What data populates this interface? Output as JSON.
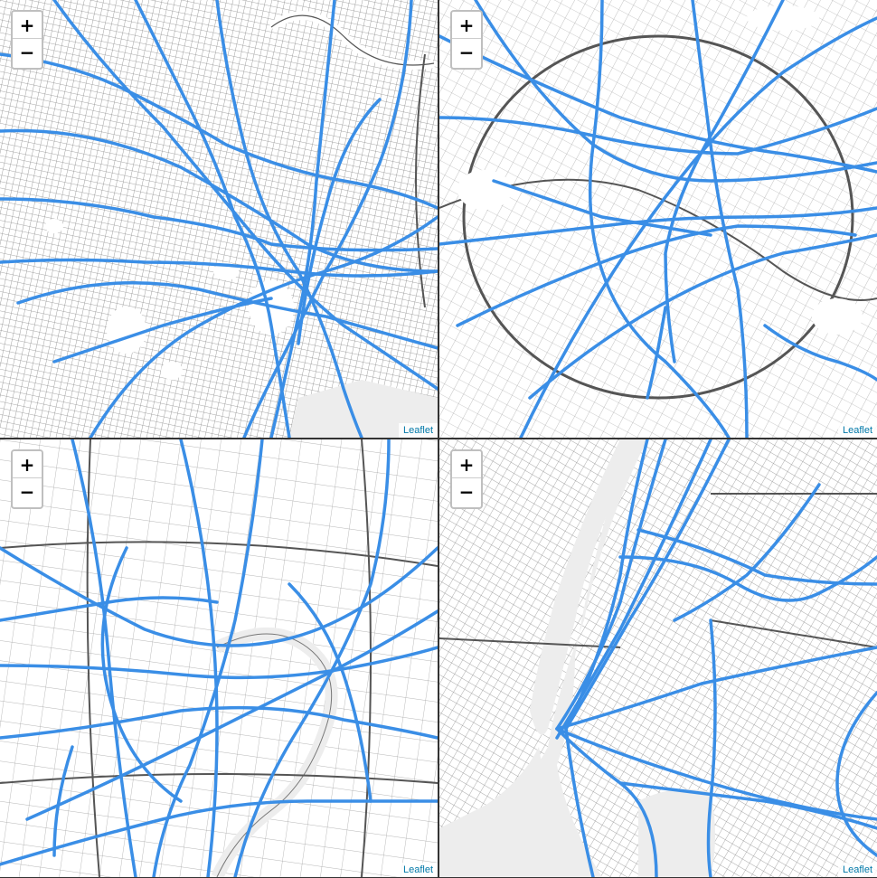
{
  "maps": [
    {
      "id": "tokyo",
      "zoom_in": "+",
      "zoom_out": "−",
      "attribution": "Leaflet"
    },
    {
      "id": "paris",
      "zoom_in": "+",
      "zoom_out": "−",
      "attribution": "Leaflet"
    },
    {
      "id": "shanghai",
      "zoom_in": "+",
      "zoom_out": "−",
      "attribution": "Leaflet"
    },
    {
      "id": "new-york",
      "zoom_in": "+",
      "zoom_out": "−",
      "attribution": "Leaflet"
    }
  ],
  "colors": {
    "route": "#3a8ee6",
    "street": "#8a8a8a",
    "major_road": "#555555",
    "water": "#ededed",
    "land": "#ffffff",
    "link": "#0078a8"
  }
}
